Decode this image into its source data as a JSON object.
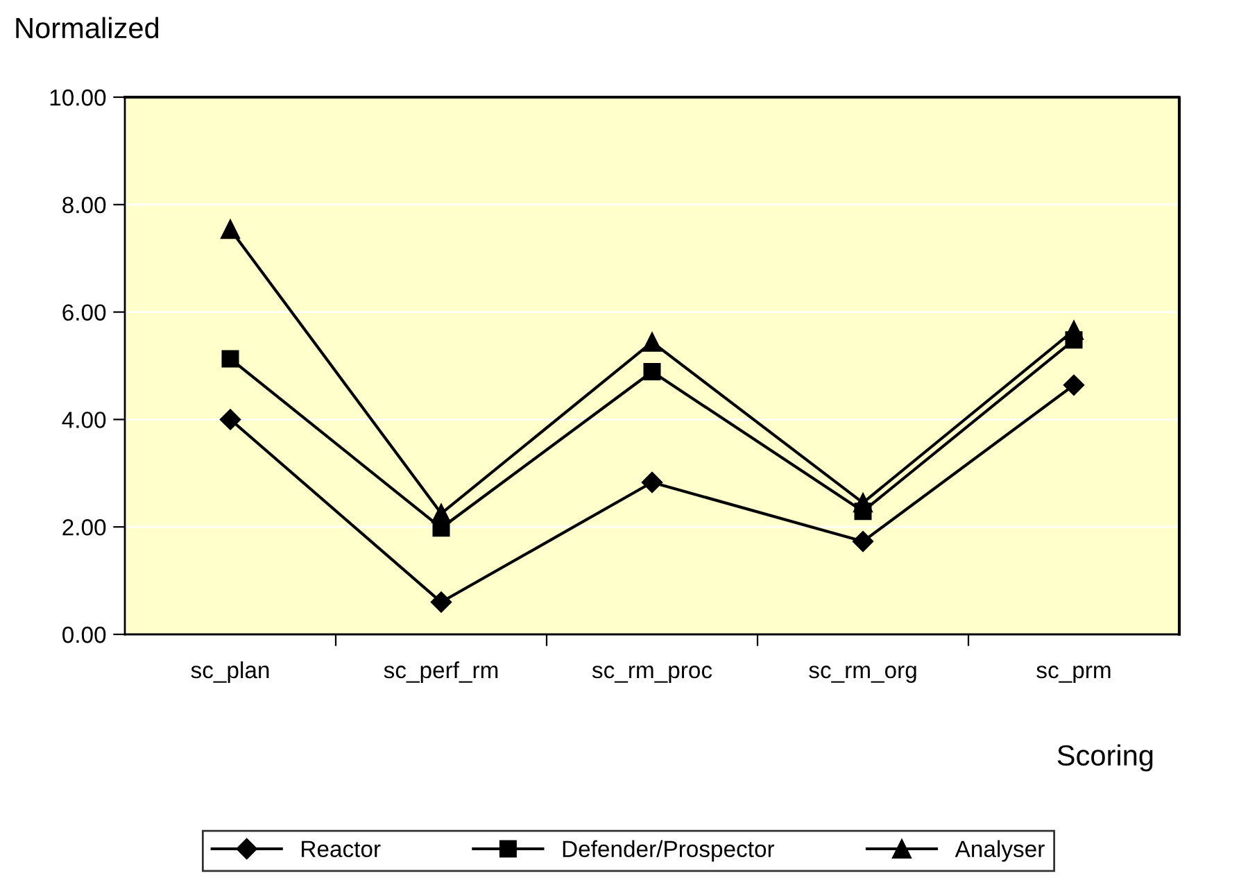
{
  "chart_data": {
    "type": "line",
    "ylabel": "Normalized",
    "xlabel": "Scoring",
    "categories": [
      "sc_plan",
      "sc_perf_rm",
      "sc_rm_proc",
      "sc_rm_org",
      "sc_prm"
    ],
    "series": [
      {
        "name": "Reactor",
        "color": "#000000",
        "marker": "diamond",
        "values": [
          4.0,
          0.6,
          2.83,
          1.73,
          4.64
        ]
      },
      {
        "name": "Defender/Prospector",
        "color": "#000000",
        "marker": "square",
        "values": [
          5.13,
          1.98,
          4.89,
          2.29,
          5.48
        ]
      },
      {
        "name": "Analyser",
        "color": "#000000",
        "marker": "triangle",
        "values": [
          7.54,
          2.25,
          5.44,
          2.45,
          5.66
        ]
      }
    ],
    "ylim": [
      0,
      10
    ],
    "yticks": [
      {
        "value": 0,
        "label": "0.00"
      },
      {
        "value": 2,
        "label": "2.00"
      },
      {
        "value": 4,
        "label": "4.00"
      },
      {
        "value": 6,
        "label": "6.00"
      },
      {
        "value": 8,
        "label": "8.00"
      },
      {
        "value": 10,
        "label": "10.00"
      }
    ],
    "grid": "y",
    "legend": "bottom",
    "line_style": "solid"
  }
}
